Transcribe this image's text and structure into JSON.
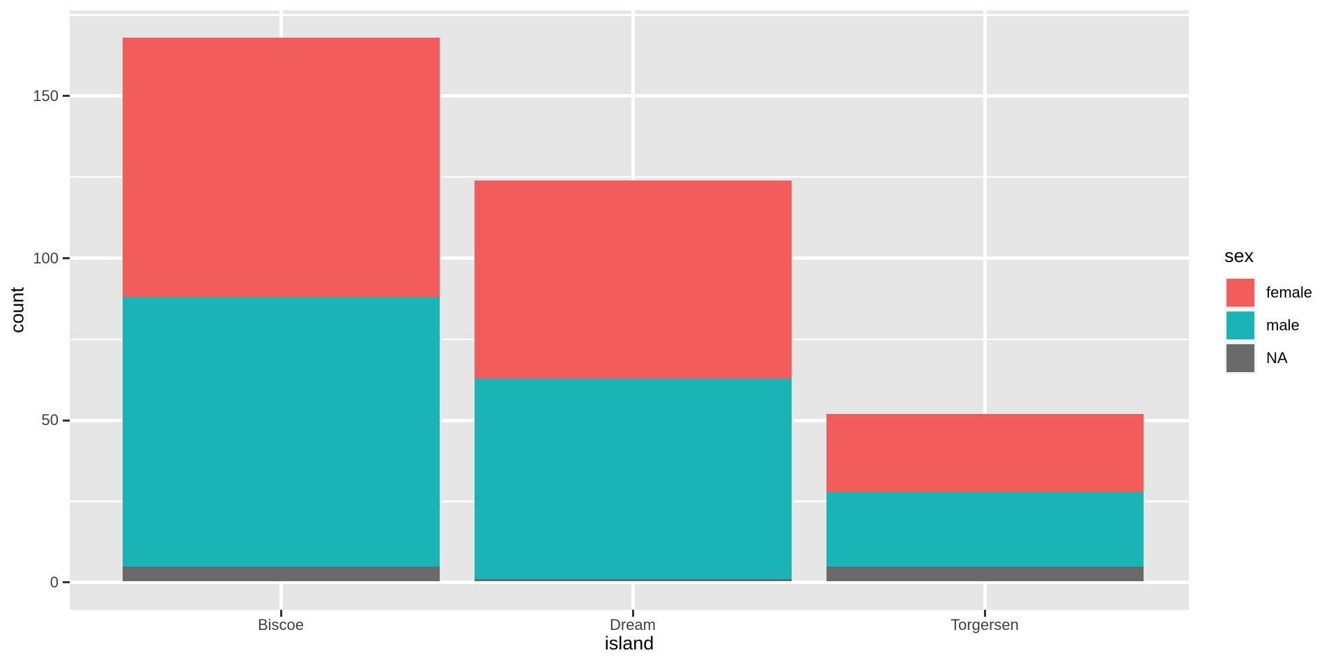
{
  "chart_data": {
    "type": "bar",
    "stacked": true,
    "title": "",
    "xlabel": "island",
    "ylabel": "count",
    "categories": [
      "Biscoe",
      "Dream",
      "Torgersen"
    ],
    "series": [
      {
        "name": "female",
        "values": [
          80,
          61,
          24
        ],
        "color": "#F25D5B"
      },
      {
        "name": "male",
        "values": [
          83,
          62,
          23
        ],
        "color": "#1AB4B7"
      },
      {
        "name": "NA",
        "values": [
          5,
          1,
          5
        ],
        "color": "#6A6A6A"
      }
    ],
    "stack_order_bottom_to_top": [
      "NA",
      "male",
      "female"
    ],
    "totals": [
      168,
      124,
      52
    ],
    "y_ticks": [
      0,
      50,
      100,
      150
    ],
    "y_minor_gridlines": [
      25,
      75,
      125,
      175
    ],
    "ylim": [
      -8.4,
      176.4
    ],
    "grid": true,
    "legend_position": "right"
  },
  "axes": {
    "x_title": "island",
    "y_title": "count",
    "x_tick_labels": [
      "Biscoe",
      "Dream",
      "Torgersen"
    ],
    "y_tick_labels": [
      "0",
      "50",
      "100",
      "150"
    ]
  },
  "legend": {
    "title": "sex",
    "items": [
      {
        "label": "female",
        "color": "#F25D5B"
      },
      {
        "label": "male",
        "color": "#1AB4B7"
      },
      {
        "label": "NA",
        "color": "#6A6A6A"
      }
    ]
  },
  "theme": {
    "panel_background": "#E6E6E6",
    "grid_color": "#FFFFFF",
    "tick_label_color": "#404040",
    "axis_title_color": "#000000",
    "tick_mark_color": "#333333",
    "page_background": "#FFFFFF"
  }
}
